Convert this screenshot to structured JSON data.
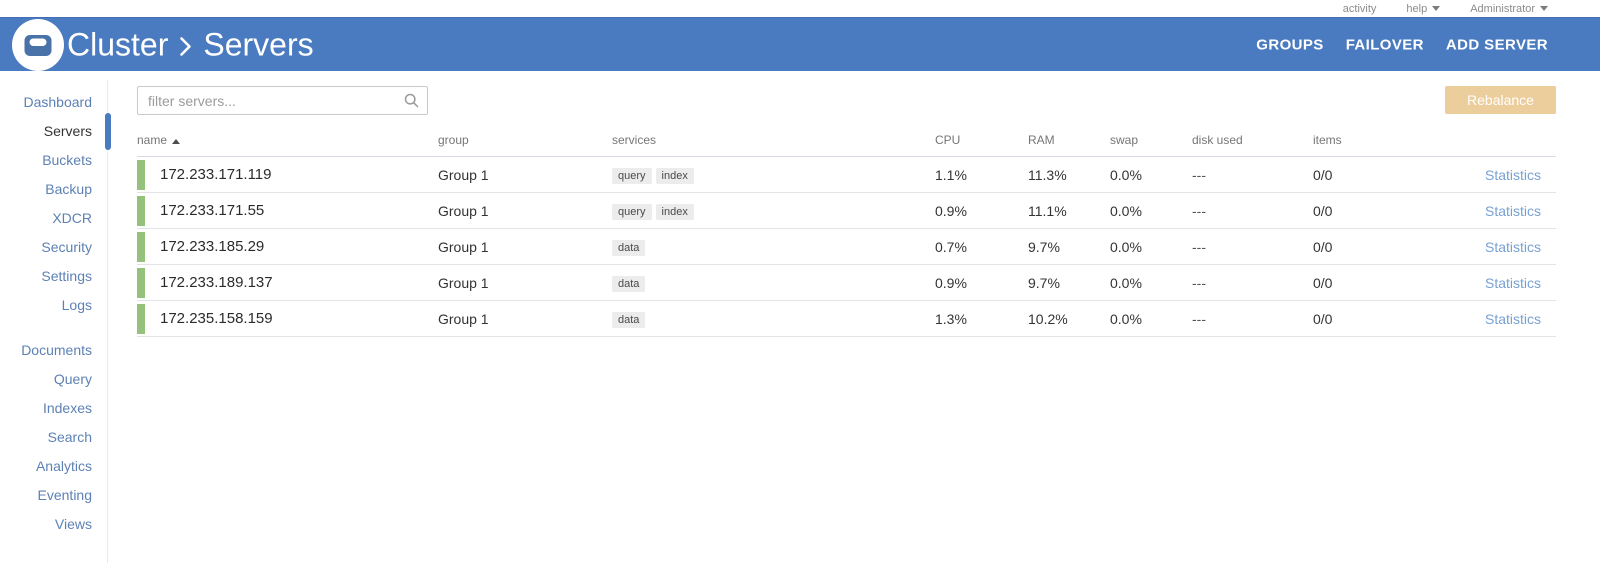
{
  "topbar": {
    "activity": "activity",
    "help": "help",
    "user": "Administrator"
  },
  "header": {
    "breadcrumb": {
      "root": "Cluster",
      "section": "Servers"
    },
    "actions": [
      {
        "label": "GROUPS"
      },
      {
        "label": "FAILOVER"
      },
      {
        "label": "ADD SERVER"
      }
    ]
  },
  "sidebar": {
    "active": "Servers",
    "primary": [
      "Dashboard",
      "Servers",
      "Buckets",
      "Backup",
      "XDCR",
      "Security",
      "Settings",
      "Logs"
    ],
    "secondary": [
      "Documents",
      "Query",
      "Indexes",
      "Search",
      "Analytics",
      "Eventing",
      "Views"
    ]
  },
  "toolbar": {
    "filter_placeholder": "filter servers...",
    "rebalance_label": "Rebalance"
  },
  "table": {
    "columns": [
      "name",
      "group",
      "services",
      "CPU",
      "RAM",
      "swap",
      "disk used",
      "items",
      ""
    ],
    "sort": {
      "column": "name",
      "direction": "asc"
    },
    "rows": [
      {
        "name": "172.233.171.119",
        "group": "Group 1",
        "services": [
          "query",
          "index"
        ],
        "cpu": "1.1%",
        "ram": "11.3%",
        "swap": "0.0%",
        "disk_used": "---",
        "items": "0/0",
        "link": "Statistics"
      },
      {
        "name": "172.233.171.55",
        "group": "Group 1",
        "services": [
          "query",
          "index"
        ],
        "cpu": "0.9%",
        "ram": "11.1%",
        "swap": "0.0%",
        "disk_used": "---",
        "items": "0/0",
        "link": "Statistics"
      },
      {
        "name": "172.233.185.29",
        "group": "Group 1",
        "services": [
          "data"
        ],
        "cpu": "0.7%",
        "ram": "9.7%",
        "swap": "0.0%",
        "disk_used": "---",
        "items": "0/0",
        "link": "Statistics"
      },
      {
        "name": "172.233.189.137",
        "group": "Group 1",
        "services": [
          "data"
        ],
        "cpu": "0.9%",
        "ram": "9.7%",
        "swap": "0.0%",
        "disk_used": "---",
        "items": "0/0",
        "link": "Statistics"
      },
      {
        "name": "172.235.158.159",
        "group": "Group 1",
        "services": [
          "data"
        ],
        "cpu": "1.3%",
        "ram": "10.2%",
        "swap": "0.0%",
        "disk_used": "---",
        "items": "0/0",
        "link": "Statistics"
      }
    ]
  },
  "colors": {
    "header_blue": "#4a7abf",
    "status_green": "#94c27d",
    "rebalance_tan": "#eccd9c",
    "link_blue": "#78a1d2",
    "sidebar_link_blue": "#5d81b5"
  }
}
